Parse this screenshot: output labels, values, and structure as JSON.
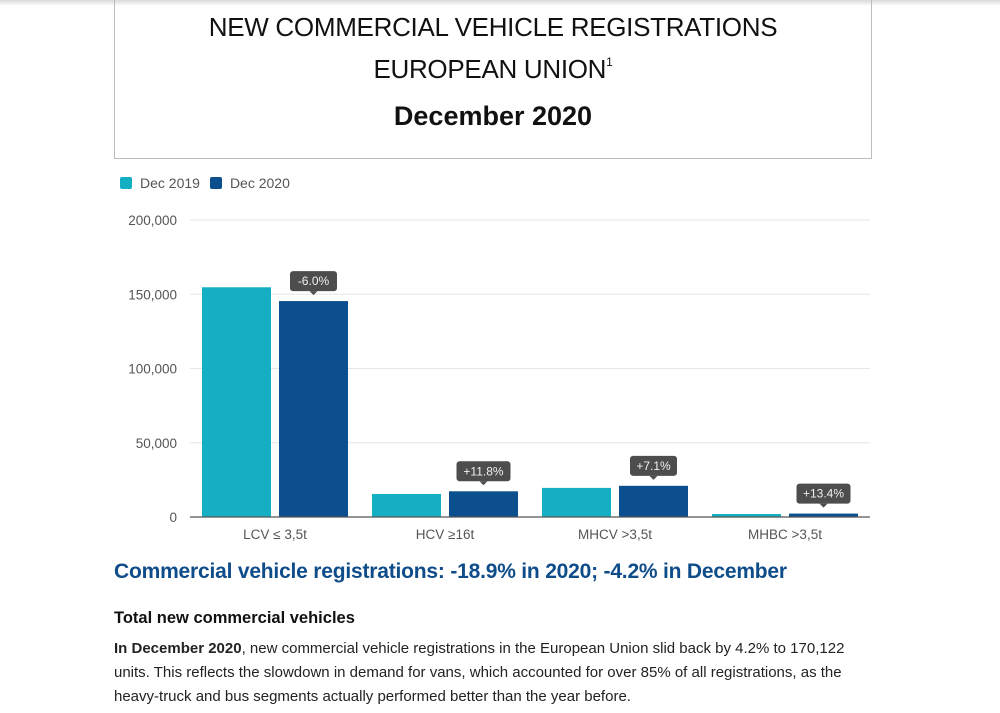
{
  "header": {
    "title_line1": "NEW COMMERCIAL VEHICLE REGISTRATIONS",
    "title_line2": "EUROPEAN UNION",
    "title_footnote": "1",
    "period": "December 2020"
  },
  "colors": {
    "dec2019": "#14afc3",
    "dec2020": "#0b4f8e",
    "tooltip": "#4d4d4d",
    "headline": "#0f4c8a"
  },
  "chart_data": {
    "type": "bar",
    "title": "",
    "xlabel": "",
    "ylabel": "",
    "categories": [
      "LCV ≤ 3,5t",
      "HCV ≥16t",
      "MHCV >3,5t",
      "MHBC >3,5t"
    ],
    "series": [
      {
        "name": "Dec 2019",
        "values": [
          154700,
          15500,
          19600,
          2000
        ]
      },
      {
        "name": "Dec 2020",
        "values": [
          145400,
          17300,
          21000,
          2300
        ]
      }
    ],
    "annotations": [
      "-6.0%",
      "+11.8%",
      "+7.1%",
      "+13.4%"
    ],
    "ylim": [
      0,
      200000
    ],
    "yticks": [
      0,
      50000,
      100000,
      150000,
      200000
    ],
    "ytick_labels": [
      "0",
      "50,000",
      "100,000",
      "150,000",
      "200,000"
    ],
    "grid": true,
    "legend": "top-left"
  },
  "text": {
    "headline": "Commercial vehicle registrations: -18.9% in 2020; -4.2% in December",
    "subhead": "Total new commercial vehicles",
    "body_bold": "In December 2020",
    "body_rest": ", new commercial vehicle registrations in the European Union slid back by 4.2% to 170,122 units. This reflects the slowdown in demand for vans, which accounted for over 85% of all registrations, as the heavy-truck and bus segments actually performed better than the year before."
  }
}
